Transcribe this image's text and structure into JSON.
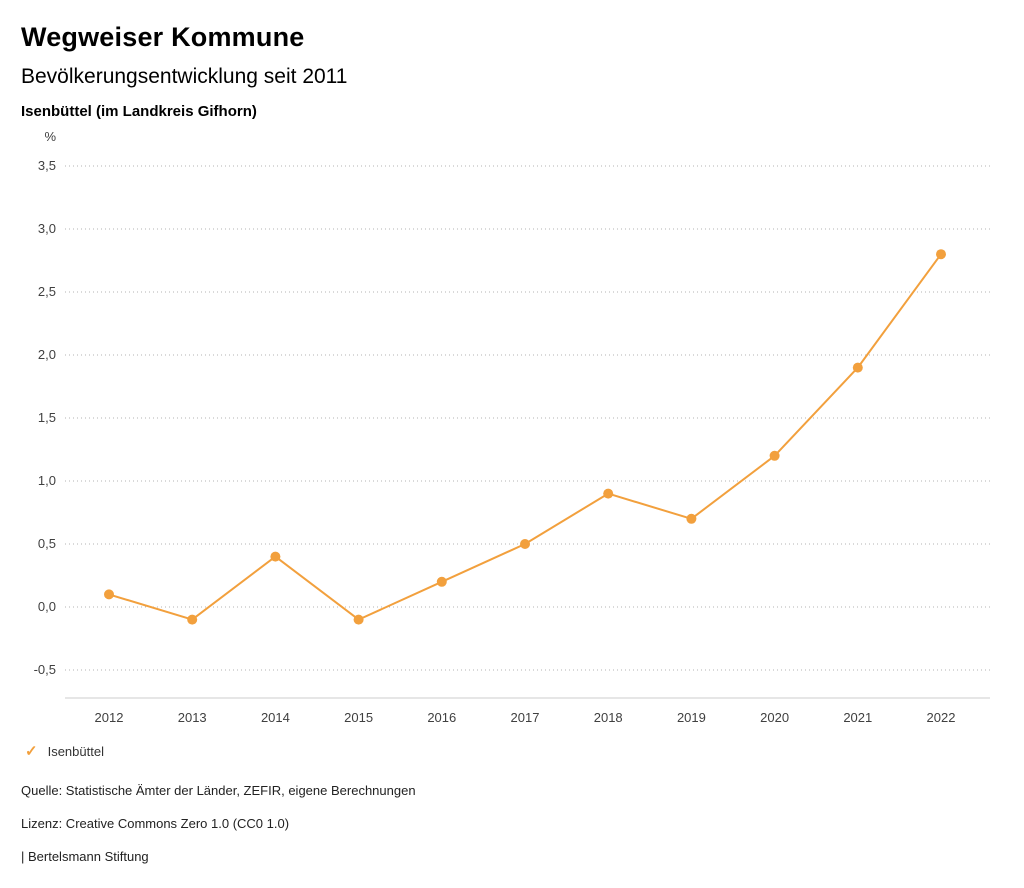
{
  "header": {
    "title": "Wegweiser Kommune",
    "subtitle": "Bevölkerungsentwicklung seit 2011",
    "location": "Isenbüttel (im Landkreis Gifhorn)"
  },
  "chart_data": {
    "type": "line",
    "title": "Bevölkerungsentwicklung seit 2011",
    "unit_label": "%",
    "categories": [
      "2012",
      "2013",
      "2014",
      "2015",
      "2016",
      "2017",
      "2018",
      "2019",
      "2020",
      "2021",
      "2022"
    ],
    "series": [
      {
        "name": "Isenbüttel",
        "values": [
          0.1,
          -0.1,
          0.4,
          -0.1,
          0.2,
          0.5,
          0.9,
          0.7,
          1.2,
          1.9,
          2.8
        ]
      }
    ],
    "xlabel": "",
    "ylabel": "%",
    "ylim": [
      -0.5,
      3.5
    ],
    "ytick_values": [
      3.5,
      3.0,
      2.5,
      2.0,
      1.5,
      1.0,
      0.5,
      0.0,
      -0.5
    ],
    "ytick_labels": [
      "3,5",
      "3,0",
      "2,5",
      "2,0",
      "1,5",
      "1,0",
      "0,5",
      "0,0",
      "-0,5"
    ],
    "grid": "horizontal-dotted",
    "legend_position": "bottom-left",
    "line_color": "#f2a03d",
    "marker": "circle",
    "axis_color": "#cccccc",
    "grid_color": "#b3b3b3"
  },
  "legend": {
    "items": [
      {
        "label": "Isenbüttel",
        "color": "#f2a03d",
        "icon": "check"
      }
    ]
  },
  "footer": {
    "source": "Quelle: Statistische Ämter der Länder, ZEFIR, eigene Berechnungen",
    "license": "Lizenz: Creative Commons Zero 1.0 (CC0 1.0)",
    "brand": "| Bertelsmann Stiftung"
  }
}
